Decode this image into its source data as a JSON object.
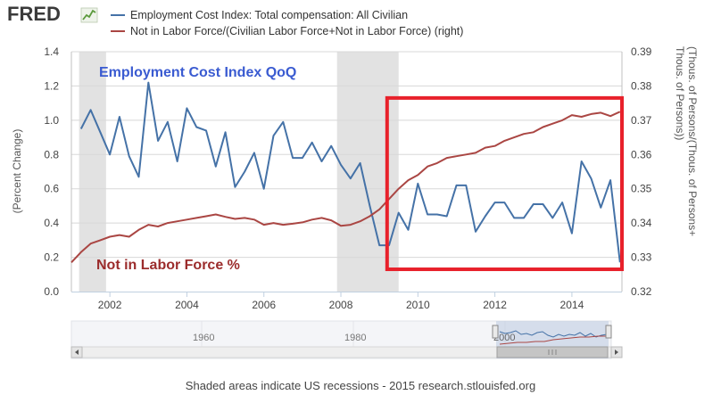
{
  "header": {
    "logo_text": "FRED",
    "legend": [
      {
        "label": "Employment Cost Index: Total compensation: All Civilian",
        "color": "#4572a7"
      },
      {
        "label": "Not in Labor Force/(Civilian Labor Force+Not in Labor Force) (right)",
        "color": "#aa4643"
      }
    ]
  },
  "footer": {
    "note": "Shaded areas indicate US recessions - 2015 research.stlouisfed.org"
  },
  "navigator": {
    "labels": [
      "1960",
      "1980",
      "2000"
    ]
  },
  "annotations": {
    "eci_label": "Employment Cost Index QoQ",
    "nilf_label": "Not in Labor Force %",
    "highlight_box_color": "#e8212b"
  },
  "chart_data": {
    "type": "line",
    "title": "",
    "xlabel": "",
    "ylabel_left": "(Percent Change)",
    "ylabel_right": "(Thous. of Persons/(Thous. of Persons+Thous. of Persons))",
    "x_ticks": [
      2002,
      2004,
      2006,
      2008,
      2010,
      2012,
      2014
    ],
    "xlim": [
      2001.0,
      2015.3
    ],
    "ylim_left": [
      0.0,
      1.4
    ],
    "ylim_right": [
      0.32,
      0.39
    ],
    "y_ticks_left": [
      "0.0",
      "0.2",
      "0.4",
      "0.6",
      "0.8",
      "1.0",
      "1.2",
      "1.4"
    ],
    "y_ticks_right": [
      "0.32",
      "0.33",
      "0.34",
      "0.35",
      "0.36",
      "0.37",
      "0.38",
      "0.39"
    ],
    "recessions": [
      [
        2001.2,
        2001.9
      ],
      [
        2007.9,
        2009.5
      ]
    ],
    "highlight_box": {
      "x": [
        2009.2,
        2015.3
      ],
      "y_left": [
        0.13,
        1.13
      ]
    },
    "series": [
      {
        "name": "Employment Cost Index: Total compensation: All Civilian",
        "axis": "left",
        "color": "#4572a7",
        "x": [
          2001.25,
          2001.5,
          2001.75,
          2002.0,
          2002.25,
          2002.5,
          2002.75,
          2003.0,
          2003.25,
          2003.5,
          2003.75,
          2004.0,
          2004.25,
          2004.5,
          2004.75,
          2005.0,
          2005.25,
          2005.5,
          2005.75,
          2006.0,
          2006.25,
          2006.5,
          2006.75,
          2007.0,
          2007.25,
          2007.5,
          2007.75,
          2008.0,
          2008.25,
          2008.5,
          2008.75,
          2009.0,
          2009.25,
          2009.5,
          2009.75,
          2010.0,
          2010.25,
          2010.5,
          2010.75,
          2011.0,
          2011.25,
          2011.5,
          2011.75,
          2012.0,
          2012.25,
          2012.5,
          2012.75,
          2013.0,
          2013.25,
          2013.5,
          2013.75,
          2014.0,
          2014.25,
          2014.5,
          2014.75,
          2015.0,
          2015.25
        ],
        "values": [
          0.95,
          1.06,
          0.93,
          0.8,
          1.02,
          0.79,
          0.67,
          1.22,
          0.88,
          0.99,
          0.76,
          1.07,
          0.96,
          0.94,
          0.73,
          0.93,
          0.61,
          0.7,
          0.81,
          0.6,
          0.91,
          0.99,
          0.78,
          0.78,
          0.87,
          0.76,
          0.85,
          0.74,
          0.66,
          0.75,
          0.5,
          0.27,
          0.27,
          0.46,
          0.36,
          0.63,
          0.45,
          0.45,
          0.44,
          0.62,
          0.62,
          0.35,
          0.44,
          0.52,
          0.52,
          0.43,
          0.43,
          0.51,
          0.51,
          0.43,
          0.52,
          0.34,
          0.76,
          0.66,
          0.49,
          0.65,
          0.17
        ]
      },
      {
        "name": "Not in Labor Force/(Civilian Labor Force+Not in Labor Force) (right)",
        "axis": "right",
        "color": "#aa4643",
        "x": [
          2001.0,
          2001.25,
          2001.5,
          2001.75,
          2002.0,
          2002.25,
          2002.5,
          2002.75,
          2003.0,
          2003.25,
          2003.5,
          2003.75,
          2004.0,
          2004.25,
          2004.5,
          2004.75,
          2005.0,
          2005.25,
          2005.5,
          2005.75,
          2006.0,
          2006.25,
          2006.5,
          2006.75,
          2007.0,
          2007.25,
          2007.5,
          2007.75,
          2008.0,
          2008.25,
          2008.5,
          2008.75,
          2009.0,
          2009.25,
          2009.5,
          2009.75,
          2010.0,
          2010.25,
          2010.5,
          2010.75,
          2011.0,
          2011.25,
          2011.5,
          2011.75,
          2012.0,
          2012.25,
          2012.5,
          2012.75,
          2013.0,
          2013.25,
          2013.5,
          2013.75,
          2014.0,
          2014.25,
          2014.5,
          2014.75,
          2015.0,
          2015.25
        ],
        "values": [
          0.3285,
          0.3315,
          0.334,
          0.335,
          0.336,
          0.3365,
          0.336,
          0.338,
          0.3395,
          0.339,
          0.34,
          0.3405,
          0.341,
          0.3415,
          0.342,
          0.3425,
          0.3418,
          0.3412,
          0.3415,
          0.341,
          0.3395,
          0.34,
          0.3395,
          0.3398,
          0.3402,
          0.341,
          0.3415,
          0.3408,
          0.3392,
          0.3395,
          0.3405,
          0.342,
          0.344,
          0.347,
          0.35,
          0.3525,
          0.354,
          0.3565,
          0.3575,
          0.359,
          0.3595,
          0.36,
          0.3605,
          0.362,
          0.3625,
          0.364,
          0.365,
          0.366,
          0.3665,
          0.368,
          0.369,
          0.37,
          0.3715,
          0.371,
          0.3718,
          0.3722,
          0.3712,
          0.3725
        ]
      }
    ]
  }
}
